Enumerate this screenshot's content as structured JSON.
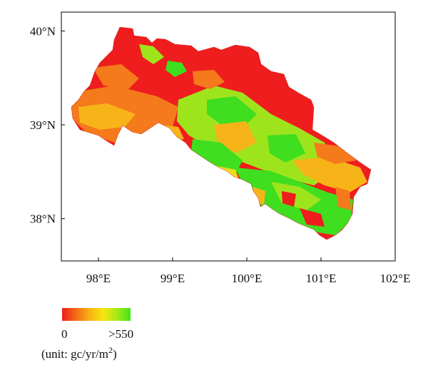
{
  "map": {
    "lat_ticks": [
      {
        "value": 40,
        "label": "40°N"
      },
      {
        "value": 39,
        "label": "39°N"
      },
      {
        "value": 38,
        "label": "38°N"
      }
    ],
    "lon_ticks": [
      {
        "value": 98,
        "label": "98°E"
      },
      {
        "value": 99,
        "label": "99°E"
      },
      {
        "value": 100,
        "label": "100°E"
      },
      {
        "value": 101,
        "label": "101°E"
      },
      {
        "value": 102,
        "label": "102°E"
      }
    ],
    "extent": {
      "lon_min": 97.5,
      "lon_max": 102.0,
      "lat_min": 37.55,
      "lat_max": 40.2
    }
  },
  "legend": {
    "min_label": "0",
    "max_label": ">550",
    "unit_prefix": "(unit: gc/yr/m",
    "unit_sup": "2",
    "unit_suffix": ")",
    "colors": [
      "#ee1d1d",
      "#f46a16",
      "#f8b214",
      "#f5e60f",
      "#a8e817",
      "#3ee41a"
    ]
  },
  "palette": {
    "red": "#ef1d1d",
    "orange": "#f47a1c",
    "amber": "#f7b419",
    "yellow": "#e9e01c",
    "light_green": "#9ee41d",
    "green": "#3fde1f"
  }
}
